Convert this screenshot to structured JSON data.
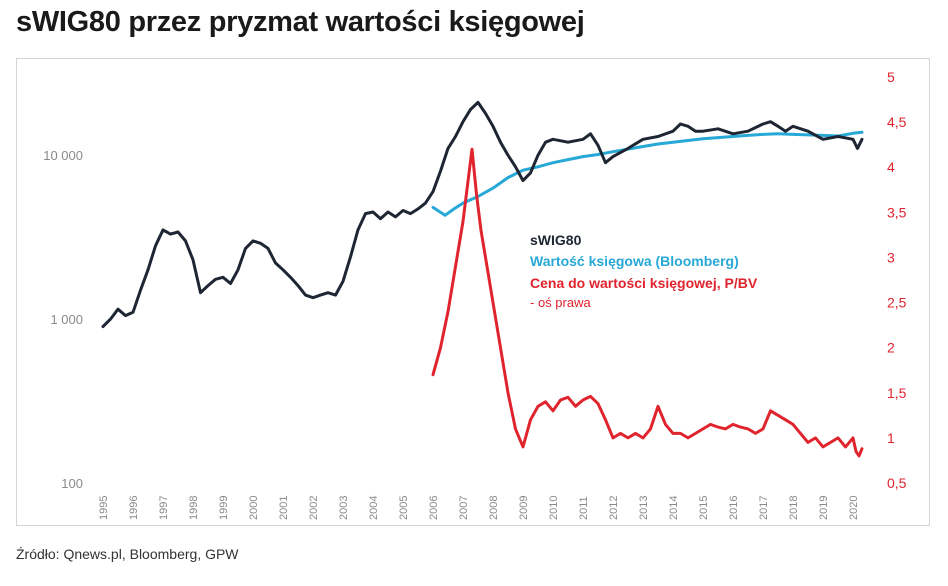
{
  "title": "sWIG80 przez pryzmat wartości księgowej",
  "source": "Źródło: Qnews.pl, Bloomberg, GPW",
  "colors": {
    "swig80": "#1e2533",
    "book_value": "#27a8d6",
    "pbv": "#e0242e",
    "axis_text": "#8a8a8a"
  },
  "chart_data": {
    "type": "line",
    "title": "sWIG80 przez pryzmat wartości księgowej",
    "left_axis": {
      "scale": "log",
      "range": [
        100,
        30000
      ],
      "ticks": [
        100,
        1000,
        10000
      ],
      "tick_labels": [
        "100",
        "1 000",
        "10 000"
      ]
    },
    "right_axis": {
      "scale": "linear",
      "range": [
        0.5,
        5
      ],
      "ticks": [
        0.5,
        1,
        1.5,
        2,
        2.5,
        3,
        3.5,
        4,
        4.5,
        5
      ],
      "tick_labels": [
        "0,5",
        "1",
        "1,5",
        "2",
        "2,5",
        "3",
        "3,5",
        "4",
        "4,5",
        "5"
      ]
    },
    "x_range": [
      1995,
      2020.4
    ],
    "x_tick_labels": [
      "1995",
      "1996",
      "1997",
      "1998",
      "1999",
      "2000",
      "2001",
      "2002",
      "2003",
      "2004",
      "2005",
      "2006",
      "2007",
      "2008",
      "2009",
      "2010",
      "2011",
      "2012",
      "2013",
      "2014",
      "2015",
      "2016",
      "2017",
      "2018",
      "2019",
      "2020"
    ],
    "legend": {
      "placement": "center",
      "entries": [
        "sWIG80",
        "Wartość księgowa (Bloomberg)",
        "Cena do wartości księgowej, P/BV",
        "- oś prawa"
      ]
    },
    "series": [
      {
        "name": "sWIG80",
        "axis": "left",
        "x": [
          1995.0,
          1995.25,
          1995.5,
          1995.75,
          1996.0,
          1996.25,
          1996.5,
          1996.75,
          1997.0,
          1997.25,
          1997.5,
          1997.75,
          1998.0,
          1998.25,
          1998.5,
          1998.75,
          1999.0,
          1999.25,
          1999.5,
          1999.75,
          2000.0,
          2000.25,
          2000.5,
          2000.75,
          2001.0,
          2001.25,
          2001.5,
          2001.75,
          2002.0,
          2002.25,
          2002.5,
          2002.75,
          2003.0,
          2003.25,
          2003.5,
          2003.75,
          2004.0,
          2004.25,
          2004.5,
          2004.75,
          2005.0,
          2005.25,
          2005.5,
          2005.75,
          2006.0,
          2006.25,
          2006.5,
          2006.75,
          2007.0,
          2007.25,
          2007.5,
          2007.75,
          2008.0,
          2008.25,
          2008.5,
          2008.75,
          2009.0,
          2009.25,
          2009.5,
          2009.75,
          2010.0,
          2010.5,
          2011.0,
          2011.25,
          2011.5,
          2011.75,
          2012.0,
          2012.5,
          2013.0,
          2013.5,
          2014.0,
          2014.25,
          2014.5,
          2014.75,
          2015.0,
          2015.5,
          2016.0,
          2016.5,
          2017.0,
          2017.25,
          2017.5,
          2017.75,
          2018.0,
          2018.5,
          2019.0,
          2019.5,
          2020.0,
          2020.15,
          2020.3
        ],
        "y": [
          900,
          1000,
          1150,
          1050,
          1100,
          1500,
          2000,
          2800,
          3500,
          3300,
          3400,
          3000,
          2300,
          1450,
          1600,
          1750,
          1800,
          1650,
          2000,
          2700,
          3000,
          2900,
          2700,
          2200,
          2000,
          1800,
          1600,
          1400,
          1350,
          1400,
          1450,
          1400,
          1700,
          2400,
          3500,
          4400,
          4500,
          4100,
          4500,
          4200,
          4600,
          4400,
          4700,
          5100,
          6000,
          8000,
          11000,
          13000,
          16000,
          19000,
          21000,
          18000,
          15000,
          12000,
          10000,
          8500,
          7000,
          7800,
          10000,
          12000,
          12500,
          12000,
          12500,
          13500,
          11500,
          9000,
          9800,
          11000,
          12500,
          13000,
          14000,
          15500,
          15000,
          14000,
          14000,
          14500,
          13500,
          14000,
          15500,
          16000,
          15000,
          14000,
          15000,
          14000,
          12500,
          13000,
          12500,
          11000,
          12500
        ]
      },
      {
        "name": "Wartość księgowa (Bloomberg)",
        "axis": "left",
        "x": [
          2006.0,
          2006.4,
          2006.7,
          2007.0,
          2007.5,
          2008.0,
          2008.5,
          2009.0,
          2009.5,
          2010.0,
          2010.5,
          2011.0,
          2011.5,
          2012.0,
          2012.5,
          2013.0,
          2013.5,
          2014.0,
          2014.5,
          2015.0,
          2015.5,
          2016.0,
          2016.5,
          2017.0,
          2017.5,
          2018.0,
          2018.5,
          2019.0,
          2019.5,
          2020.0,
          2020.3
        ],
        "y": [
          4800,
          4300,
          4700,
          5100,
          5600,
          6300,
          7300,
          8100,
          8500,
          9000,
          9400,
          9800,
          10100,
          10500,
          10900,
          11300,
          11700,
          12000,
          12300,
          12600,
          12800,
          13000,
          13200,
          13400,
          13500,
          13400,
          13300,
          13200,
          13100,
          13600,
          13800
        ]
      },
      {
        "name": "Cena do wartości księgowej, P/BV",
        "axis": "right",
        "x": [
          2006.0,
          2006.25,
          2006.5,
          2006.75,
          2007.0,
          2007.15,
          2007.3,
          2007.45,
          2007.6,
          2007.75,
          2008.0,
          2008.25,
          2008.5,
          2008.75,
          2009.0,
          2009.25,
          2009.5,
          2009.75,
          2010.0,
          2010.25,
          2010.5,
          2010.75,
          2011.0,
          2011.25,
          2011.5,
          2011.75,
          2012.0,
          2012.25,
          2012.5,
          2012.75,
          2013.0,
          2013.25,
          2013.5,
          2013.75,
          2014.0,
          2014.25,
          2014.5,
          2014.75,
          2015.0,
          2015.25,
          2015.5,
          2015.75,
          2016.0,
          2016.25,
          2016.5,
          2016.75,
          2017.0,
          2017.25,
          2017.5,
          2017.75,
          2018.0,
          2018.25,
          2018.5,
          2018.75,
          2019.0,
          2019.25,
          2019.5,
          2019.75,
          2020.0,
          2020.1,
          2020.2,
          2020.3
        ],
        "y": [
          1.7,
          2.0,
          2.4,
          2.9,
          3.4,
          3.8,
          4.2,
          3.7,
          3.3,
          3.0,
          2.5,
          2.0,
          1.5,
          1.1,
          0.9,
          1.2,
          1.35,
          1.4,
          1.3,
          1.42,
          1.45,
          1.35,
          1.42,
          1.46,
          1.38,
          1.2,
          1.0,
          1.05,
          1.0,
          1.05,
          1.0,
          1.1,
          1.35,
          1.15,
          1.05,
          1.05,
          1.0,
          1.05,
          1.1,
          1.15,
          1.12,
          1.1,
          1.15,
          1.12,
          1.1,
          1.05,
          1.1,
          1.3,
          1.25,
          1.2,
          1.15,
          1.05,
          0.95,
          1.0,
          0.9,
          0.95,
          1.0,
          0.9,
          1.0,
          0.85,
          0.8,
          0.88
        ]
      }
    ]
  }
}
